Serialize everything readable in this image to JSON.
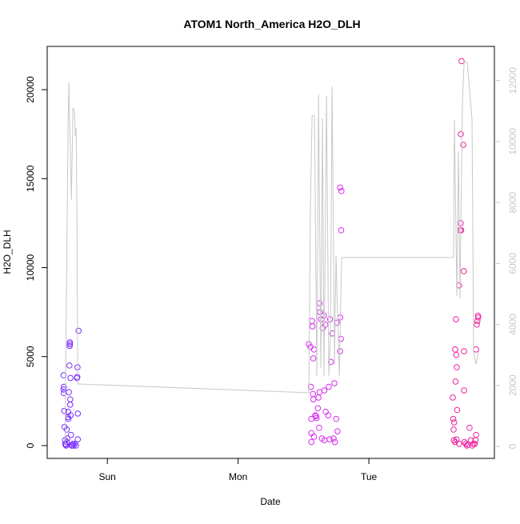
{
  "chart_data": {
    "type": "scatter",
    "title": "ATOM1 North_America H2O_DLH",
    "xlabel": "Date",
    "ylabel": "H2O_DLH",
    "xlim": [
      0.54,
      3.96
    ],
    "xticks": [
      {
        "value": 1,
        "label": "Sun"
      },
      {
        "value": 2,
        "label": "Mon"
      },
      {
        "value": 3,
        "label": "Tue"
      }
    ],
    "ylim": [
      -720,
      22430
    ],
    "yticks": [
      0,
      5000,
      10000,
      15000,
      20000
    ],
    "y2lim": [
      -394,
      13120
    ],
    "y2ticks": [
      0,
      2000,
      4000,
      6000,
      8000,
      10000,
      12000
    ],
    "y2color": "#c8c8c8",
    "series": [
      {
        "color": "#7a2cff",
        "x": [
          0.665,
          0.665,
          0.667,
          0.667,
          0.67,
          0.672,
          0.676,
          0.678,
          0.68,
          0.685,
          0.69,
          0.698,
          0.7,
          0.702,
          0.706,
          0.71,
          0.712,
          0.713,
          0.714,
          0.716,
          0.716,
          0.718,
          0.719,
          0.722,
          0.726,
          0.73,
          0.736,
          0.742,
          0.768,
          0.77,
          0.772,
          0.78,
          0.774,
          0.774,
          0.76,
          0.75,
          0.694,
          0.69
        ],
        "values": [
          3950,
          3150,
          2950,
          3300,
          1950,
          1050,
          300,
          100,
          50,
          0,
          200,
          1600,
          1900,
          1500,
          3000,
          4500,
          5600,
          5800,
          5700,
          2300,
          2600,
          3800,
          1700,
          600,
          0,
          0,
          100,
          0,
          3800,
          3850,
          4400,
          6450,
          1800,
          350,
          0,
          100,
          400,
          900
        ]
      },
      {
        "color": "#d92cf0",
        "x": [
          2.541,
          2.553,
          2.557,
          2.56,
          2.56,
          2.56,
          2.565,
          2.569,
          2.572,
          2.575,
          2.575,
          2.58,
          2.59,
          2.596,
          2.6,
          2.61,
          2.615,
          2.623,
          2.623,
          2.627,
          2.635,
          2.647,
          2.655,
          2.659,
          2.667,
          2.67,
          2.69,
          2.693,
          2.703,
          2.71,
          2.72,
          2.73,
          2.736,
          2.75,
          2.755,
          2.76,
          2.78,
          2.781,
          2.786,
          2.788,
          2.79,
          2.78,
          2.62,
          2.66,
          2.7,
          2.74,
          2.58,
          2.64
        ],
        "values": [
          5700,
          5550,
          3300,
          1500,
          700,
          200,
          7000,
          6700,
          2900,
          2600,
          4900,
          5400,
          1700,
          1650,
          1550,
          2100,
          2700,
          3000,
          8000,
          7500,
          7100,
          6600,
          7300,
          3100,
          6800,
          1900,
          1700,
          3300,
          7100,
          4700,
          6300,
          400,
          3500,
          1500,
          6900,
          800,
          5300,
          7200,
          6000,
          12100,
          14300,
          14500,
          1000,
          300,
          350,
          200,
          500,
          400
        ]
      },
      {
        "color": "#f0209e",
        "x": [
          3.642,
          3.645,
          3.648,
          3.65,
          3.652,
          3.66,
          3.663,
          3.666,
          3.668,
          3.672,
          3.675,
          3.69,
          3.698,
          3.702,
          3.709,
          3.703,
          3.706,
          3.726,
          3.722,
          3.728,
          3.728,
          3.731,
          3.74,
          3.75,
          3.76,
          3.77,
          3.78,
          3.79,
          3.8,
          3.82,
          3.826,
          3.83,
          3.834,
          3.836,
          3.82,
          3.815,
          3.81,
          3.66,
          3.67,
          3.69
        ],
        "values": [
          2700,
          1500,
          900,
          300,
          1300,
          5400,
          3600,
          7100,
          5100,
          4400,
          2000,
          9000,
          12100,
          12500,
          21600,
          17500,
          12100,
          9800,
          16900,
          3100,
          5300,
          200,
          100,
          0,
          50,
          1000,
          300,
          0,
          100,
          5400,
          6800,
          7000,
          7300,
          7200,
          600,
          300,
          100,
          200,
          350,
          100
        ]
      },
      {
        "color": "#c8c8c8",
        "axis": "y2",
        "x": [
          0.676,
          0.688,
          0.7,
          0.706,
          0.713,
          0.725,
          0.737,
          0.749,
          0.755,
          0.761,
          0.767,
          0.774,
          0.78,
          2.541,
          2.553,
          2.566,
          2.584,
          2.602,
          2.615,
          2.633,
          2.645,
          2.657,
          2.676,
          2.694,
          2.706,
          2.719,
          2.737,
          2.749,
          2.774,
          2.792,
          3.648,
          3.654,
          3.673,
          3.685,
          3.697,
          3.716,
          3.728,
          3.752,
          3.789,
          3.801,
          3.82,
          3.838
        ],
        "values": [
          79,
          5460,
          10580,
          11940,
          10450,
          8085,
          11100,
          10970,
          10185,
          10450,
          8000,
          2048,
          2048,
          1759,
          7930,
          10840,
          10840,
          2310,
          11550,
          2570,
          10760,
          2310,
          11500,
          2310,
          3620,
          11810,
          2700,
          6250,
          2310,
          6195,
          6195,
          10710,
          4935,
          9660,
          4860,
          11370,
          12600,
          12600,
          10710,
          3100,
          2700,
          3100
        ]
      }
    ]
  }
}
